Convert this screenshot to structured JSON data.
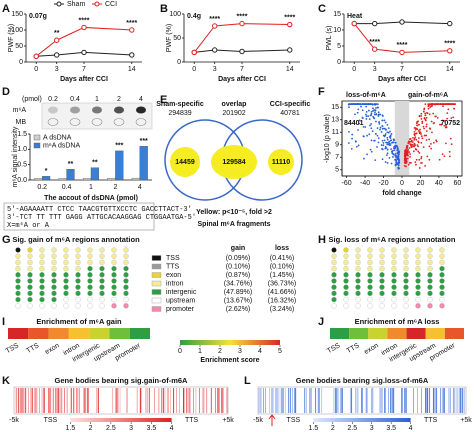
{
  "chart_data": [
    {
      "type": "line",
      "label": "A",
      "annotation": "0.07g",
      "ylabel": "PWF (%)",
      "xlabel": "Days after CCI",
      "x": [
        0,
        3,
        7,
        14
      ],
      "xlim": [
        -1.5,
        15.5
      ],
      "xticks": [
        0,
        3,
        7,
        14
      ],
      "ylim": [
        0,
        150
      ],
      "yticks": [
        0,
        50,
        100,
        150
      ],
      "legend": "top",
      "series": [
        {
          "name": "Sham",
          "color": "#222222",
          "values": [
            18,
            22,
            30,
            22
          ]
        },
        {
          "name": "CCI",
          "color": "#e02020",
          "values": [
            18,
            68,
            108,
            100
          ],
          "significance": [
            "**",
            "****",
            "****"
          ]
        }
      ]
    },
    {
      "type": "line",
      "label": "B",
      "annotation": "0.4g",
      "ylabel": "PWF (%)",
      "xlabel": "Days after CCI",
      "x": [
        0,
        3,
        7,
        14
      ],
      "xlim": [
        -1.5,
        15.5
      ],
      "xticks": [
        0,
        3,
        7,
        14
      ],
      "ylim": [
        0,
        100
      ],
      "yticks": [
        0,
        50,
        100
      ],
      "series": [
        {
          "color": "#222222",
          "values": [
            20,
            25,
            22,
            25
          ]
        },
        {
          "color": "#e02020",
          "values": [
            20,
            75,
            80,
            78
          ],
          "significance": [
            "****",
            "****",
            "****"
          ]
        }
      ]
    },
    {
      "type": "line",
      "label": "C",
      "annotation": "Heat",
      "ylabel": "PWL (s)",
      "xlabel": "Days after CCI",
      "x": [
        0,
        3,
        7,
        14
      ],
      "xlim": [
        -1.5,
        15.5
      ],
      "xticks": [
        0,
        3,
        7,
        14
      ],
      "ylim": [
        0,
        15
      ],
      "yticks": [
        0,
        5,
        10,
        15
      ],
      "series": [
        {
          "color": "#222222",
          "values": [
            12,
            12,
            12.5,
            12
          ]
        },
        {
          "color": "#e02020",
          "values": [
            12,
            4,
            3,
            3.5
          ],
          "significance": [
            "****",
            "****",
            "****"
          ]
        }
      ]
    },
    {
      "type": "bar",
      "label": "D",
      "ylabel": "m⁶A signal intensity",
      "xlabel": "The accout of dsDNA (pmol)",
      "categories": [
        "0.2",
        "0.4",
        "1",
        "2",
        "4"
      ],
      "ylim": [
        0,
        1.5
      ],
      "yticks": [
        {
          "value": 0,
          "label": "0.0"
        },
        {
          "value": 0.5,
          "label": "0.5"
        },
        {
          "value": 1,
          "label": "1.0"
        },
        {
          "value": 1.5,
          "label": "1.5"
        }
      ],
      "legend": "top-left",
      "series": [
        {
          "name": "A dsDNA",
          "color": "#cfcfcf",
          "values": [
            0.05,
            0.05,
            0.05,
            0.06,
            0.06
          ]
        },
        {
          "name": "m⁶A dsDNA",
          "color": "#3a7fd5",
          "values": [
            0.12,
            0.35,
            0.4,
            0.95,
            1.1
          ],
          "significance": [
            "*",
            "**",
            "**",
            "***",
            "***"
          ]
        }
      ]
    },
    {
      "type": "scatter",
      "label": "F",
      "ylabel": "-log10 (p value)",
      "xlabel": "fold change",
      "xlim": [
        -65,
        65
      ],
      "xticks": [
        -60,
        -40,
        -20,
        0,
        20,
        40,
        60
      ],
      "ylim": [
        4,
        16
      ],
      "yticks": [
        5,
        7,
        9,
        11,
        13,
        15
      ],
      "groups": [
        {
          "name": "loss-of-m⁶A",
          "count": 84401,
          "color": "#2b5fd6"
        },
        {
          "name": "gain-of-m⁶A",
          "count": 70752,
          "color": "#e02020"
        }
      ]
    }
  ],
  "figure": {
    "blot": {
      "unit": "(pmol)",
      "rows": [
        "m⁶A",
        "MB"
      ]
    },
    "sequence": [
      "5'-AGAAAATT CTCC TAACGTGTTXCCTC GACCTTACT-3'",
      "3'-TCT TT TTT GAGG ATTGCACAAGGAG CTGGAATGA-5'",
      "X=m⁶A or A"
    ],
    "venn": {
      "label": "E",
      "left": {
        "name": "Sham-specific",
        "total": 294839,
        "inner": 14459
      },
      "overlap": {
        "name": "overlap",
        "total": 201902,
        "inner": 129584
      },
      "right": {
        "name": "CCI-specific",
        "total": 40781,
        "inner": 11110
      },
      "note": "Yellow: p<10⁻⁵, fold >2",
      "caption": "Spinal m⁶A fragments"
    },
    "annotation": {
      "labels": [
        "G",
        "H"
      ],
      "titles": [
        "Sig. gain of m⁶A regions annotation",
        "Sig. loss of m⁶A regions annotation"
      ],
      "headers": [
        "gain",
        "loss"
      ],
      "categories": [
        "TSS",
        "TTS",
        "exon",
        "intron",
        "intergenic",
        "upstream",
        "promoter"
      ],
      "colors": [
        "#111111",
        "#9a9a9a",
        "#e6d23a",
        "#f4ec9a",
        "#2e9e44",
        "#ffffff",
        "#f08aa8"
      ],
      "gain": {
        "values": [
          0.09,
          0.1,
          0.87,
          34.76,
          47.89,
          13.67,
          2.62
        ],
        "value_labels": [
          "(0.09%)",
          "(0.10%)",
          "(0.87%)",
          "(34.76%)",
          "(47.89%)",
          "(13.67%)",
          "(2.62%)"
        ]
      },
      "loss": {
        "values": [
          0.41,
          0.1,
          1.45,
          36.73,
          41.66,
          16.32,
          3.24
        ],
        "value_labels": [
          "(0.41%)",
          "(0.10%)",
          "(1.45%)",
          "(36.73%)",
          "(41.66%)",
          "(16.32%)",
          "(3.24%)"
        ]
      }
    },
    "enrichment": {
      "labels": [
        "I",
        "J"
      ],
      "titles": [
        "Enrichment of m⁶A gain",
        "Enrichment of m⁶A loss"
      ],
      "categories": [
        "TSS",
        "TTS",
        "exon",
        "intron",
        "intergenic",
        "upstream",
        "promoter"
      ],
      "highlight": [
        "intron",
        "intergenic"
      ],
      "highlight_color": "#e02020",
      "scale_label": "Enrichment score",
      "scale_ticks": [
        0,
        1,
        2,
        3,
        4,
        5
      ]
    },
    "gene_bodies": {
      "labels": [
        "K",
        "L"
      ],
      "titles": [
        "Gene bodies bearing sig.gain-of-m6A",
        "Gene bodies bearing sig.loss-of-m6A"
      ],
      "colors": [
        "#e02020",
        "#2b5fd6"
      ],
      "positions": [
        "-5k",
        "TSS",
        "TTS",
        "+5k"
      ],
      "scale_ticks": [
        1.5,
        2,
        2.5,
        3,
        3.5,
        4
      ]
    }
  }
}
